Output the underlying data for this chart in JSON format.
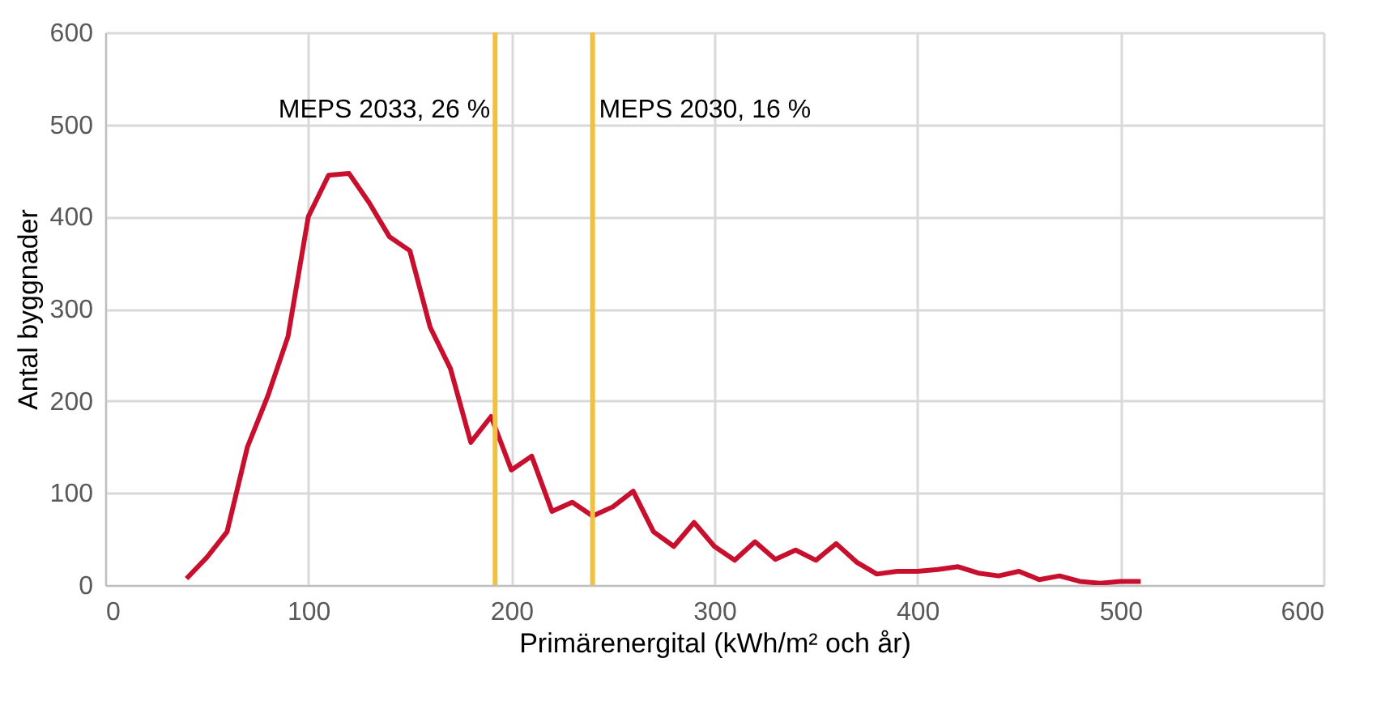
{
  "chart_data": {
    "type": "line",
    "xlabel": "Primärenergital (kWh/m² och år)",
    "ylabel": "Antal byggnader",
    "x": [
      40,
      50,
      60,
      70,
      80,
      90,
      100,
      110,
      120,
      130,
      140,
      150,
      160,
      170,
      180,
      190,
      200,
      210,
      220,
      230,
      240,
      250,
      260,
      270,
      280,
      290,
      300,
      310,
      320,
      330,
      340,
      350,
      360,
      370,
      380,
      390,
      400,
      410,
      420,
      430,
      440,
      450,
      460,
      470,
      480,
      490,
      500,
      510
    ],
    "series": [
      {
        "color": "#c8102e",
        "values": [
          7,
          30,
          58,
          150,
          205,
          270,
          400,
          445,
          447,
          415,
          378,
          363,
          280,
          235,
          155,
          183,
          125,
          140,
          80,
          90,
          75,
          85,
          102,
          58,
          42,
          68,
          42,
          27,
          47,
          28,
          38,
          27,
          45,
          25,
          12,
          15,
          15,
          17,
          20,
          13,
          10,
          15,
          6,
          10,
          4,
          2,
          4,
          4
        ]
      }
    ],
    "xlim": [
      0,
      600
    ],
    "xticks": [
      0,
      100,
      200,
      300,
      400,
      500,
      600
    ],
    "ylim": [
      0,
      600
    ],
    "yticks": [
      0,
      100,
      200,
      300,
      400,
      500,
      600
    ],
    "grid": true,
    "marker": "none",
    "line_style": "solid",
    "ref_lines": [
      {
        "axis": "x",
        "value": 192,
        "label": "MEPS 2033, 26 %",
        "color": "#f0c040"
      },
      {
        "axis": "x",
        "value": 240,
        "label": "MEPS 2030, 16 %",
        "color": "#f0c040"
      }
    ]
  }
}
